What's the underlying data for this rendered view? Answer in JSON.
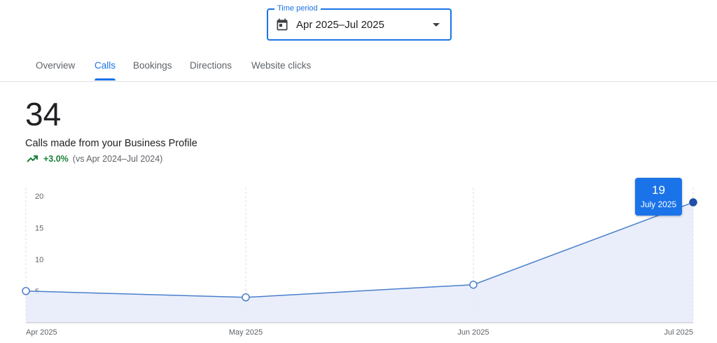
{
  "time_period": {
    "label": "Time period",
    "value": "Apr 2025–Jul 2025",
    "icon": "calendar-icon"
  },
  "tabs": [
    {
      "label": "Overview",
      "active": false
    },
    {
      "label": "Calls",
      "active": true
    },
    {
      "label": "Bookings",
      "active": false
    },
    {
      "label": "Directions",
      "active": false
    },
    {
      "label": "Website clicks",
      "active": false
    }
  ],
  "summary": {
    "total": "34",
    "metric_label": "Calls made from your Business Profile",
    "change": "+3.0%",
    "comparison": "(vs Apr 2024–Jul 2024)",
    "trend_icon": "trending-up-icon",
    "trend_color": "#188038"
  },
  "tooltip": {
    "value": "19",
    "label": "July 2025"
  },
  "colors": {
    "accent": "#1a73e8",
    "line": "#4a7fcb",
    "area_fill": "#e6ebfa",
    "highlight_point": "#1f4fa6"
  },
  "chart_data": {
    "type": "area",
    "categories": [
      "Apr 2025",
      "May 2025",
      "Jun 2025",
      "Jul 2025"
    ],
    "series": [
      {
        "values": [
          5,
          4,
          6,
          19
        ]
      }
    ],
    "y_ticks": [
      5,
      10,
      15,
      20
    ],
    "ylim": [
      0,
      20
    ],
    "grid": true,
    "highlighted_category": "Jul 2025"
  }
}
